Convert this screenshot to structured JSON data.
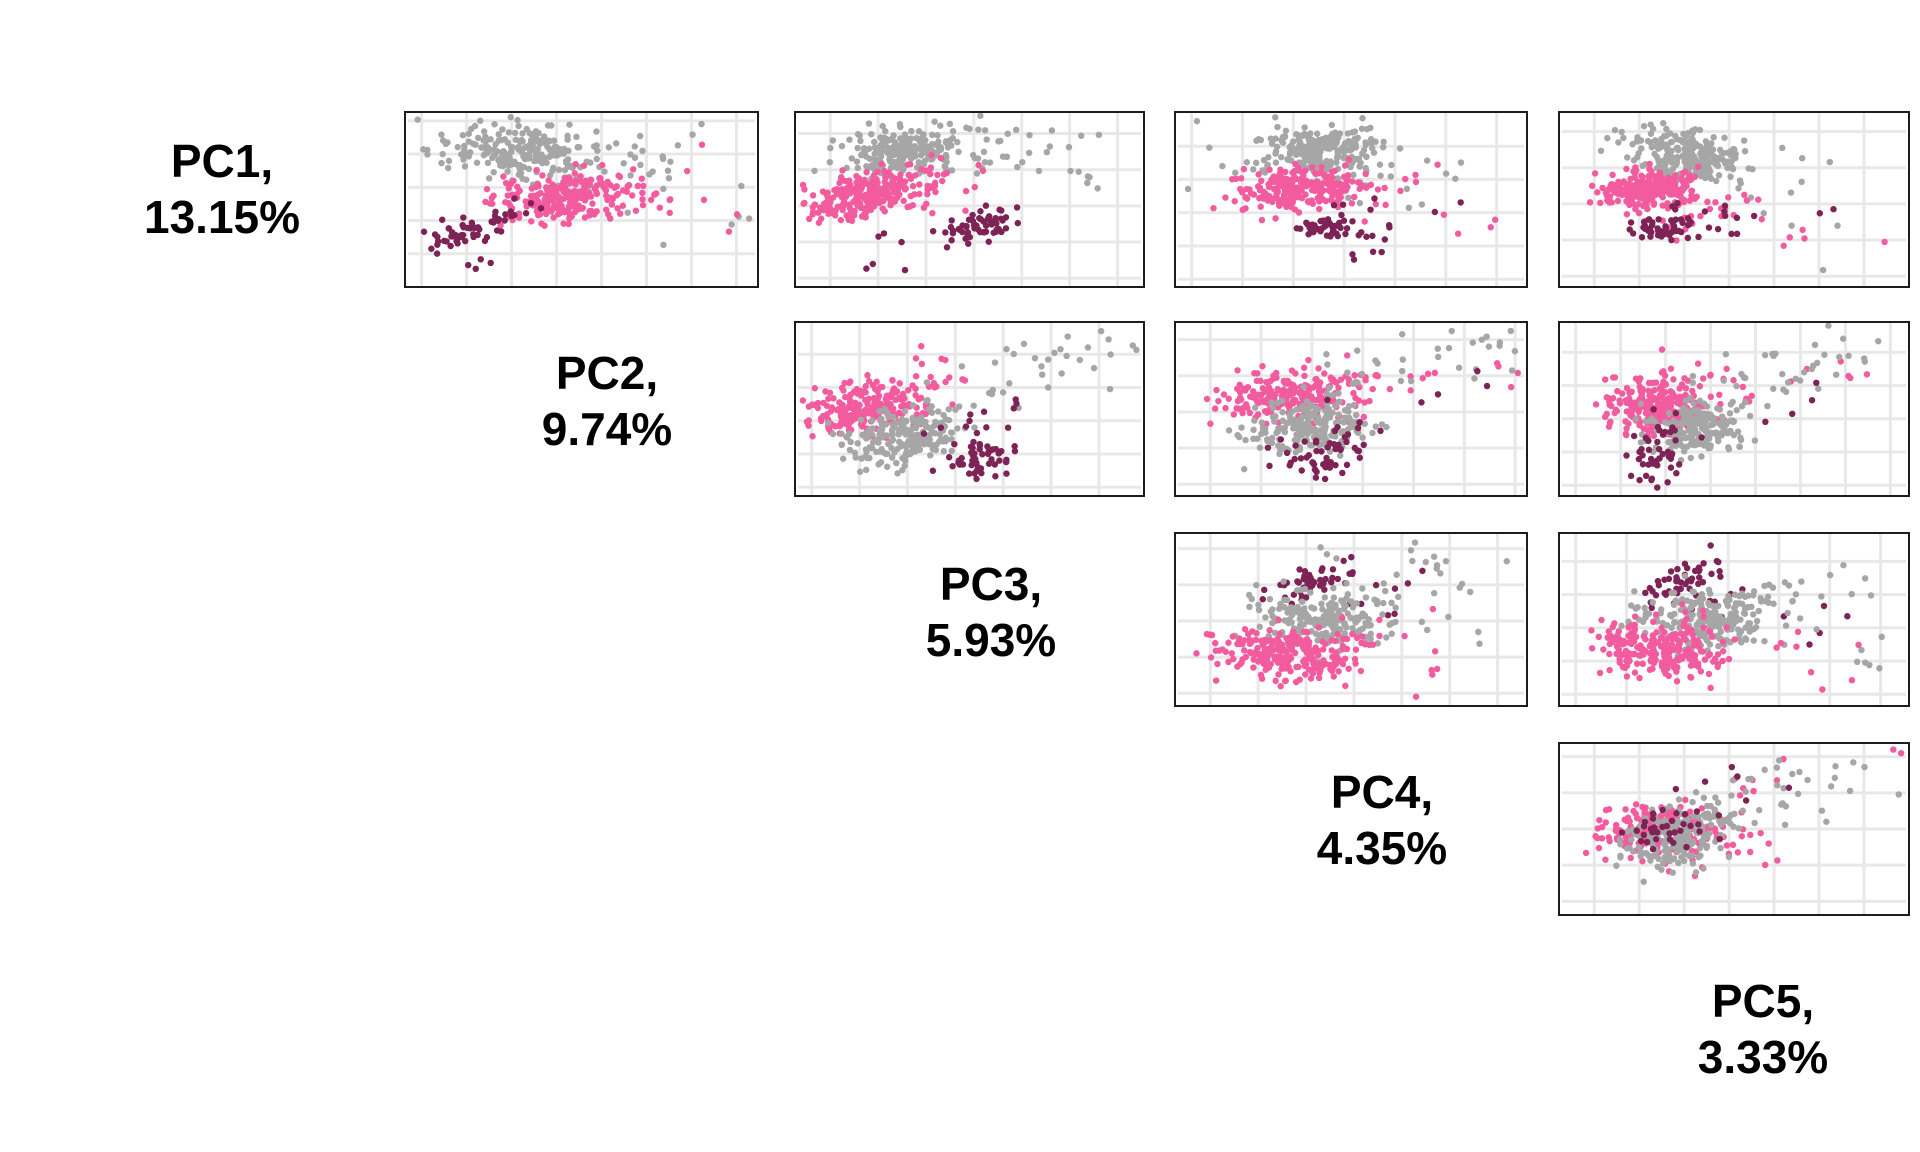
{
  "figure": {
    "kind": "PCA pairs scatter-plot matrix",
    "background": "#ffffff"
  },
  "colors": {
    "panel_background": "#ffffff",
    "panel_border": "#1c1c1c",
    "gridline": "#e8e8e8",
    "label_text": "#000000",
    "group_gray": "#a6a6a6",
    "group_pink": "#f35b9f",
    "group_dark": "#7e2355"
  },
  "diagonal_labels": [
    {
      "id": "PC1",
      "line1": "PC1,",
      "line2": "13.15%",
      "variance_percent": 13.15
    },
    {
      "id": "PC2",
      "line1": "PC2,",
      "line2": "9.74%",
      "variance_percent": 9.74
    },
    {
      "id": "PC3",
      "line1": "PC3,",
      "line2": "5.93%",
      "variance_percent": 5.93
    },
    {
      "id": "PC4",
      "line1": "PC4,",
      "line2": "4.35%",
      "variance_percent": 4.35
    },
    {
      "id": "PC5",
      "line1": "PC5,",
      "line2": "3.33%",
      "variance_percent": 3.33
    }
  ],
  "chart_data": {
    "type": "scatter",
    "title": "",
    "layout": "upper-triangle pairs matrix; diagonal cells show principal component name and percent variance explained; no axis tick labels shown; light gray gridlines on white panels",
    "legend": "none shown",
    "groups": [
      {
        "key": "gray",
        "name": "group-gray",
        "color": "#a6a6a6"
      },
      {
        "key": "pink",
        "name": "group-pink",
        "color": "#f35b9f"
      },
      {
        "key": "dark",
        "name": "group-dark-magenta",
        "color": "#7e2355"
      }
    ],
    "coords_note": "cluster centers (cx,cy) and spreads (sx,sy) are fractions of panel width/height measured from the panel top-left; rho is screen-space correlation; n is approximate point count",
    "point_radius_px": 3.3,
    "panels": [
      {
        "x_var": "PC2",
        "y_var": "PC1",
        "grid_row": 0,
        "grid_col": 0,
        "clusters": [
          {
            "group": "gray",
            "n": 215,
            "cx": 0.32,
            "cy": 0.22,
            "sx": 0.11,
            "sy": 0.075,
            "rho": 0.15
          },
          {
            "group": "gray",
            "n": 30,
            "cx": 0.62,
            "cy": 0.3,
            "sx": 0.17,
            "sy": 0.13,
            "rho": -0.2
          },
          {
            "group": "gray",
            "n": 6,
            "cx": 0.86,
            "cy": 0.42,
            "sx": 0.09,
            "sy": 0.16,
            "rho": 0
          },
          {
            "group": "pink",
            "n": 225,
            "cx": 0.46,
            "cy": 0.49,
            "sx": 0.1,
            "sy": 0.07,
            "rho": -0.25
          },
          {
            "group": "pink",
            "n": 20,
            "cx": 0.62,
            "cy": 0.47,
            "sx": 0.14,
            "sy": 0.13,
            "rho": 0
          },
          {
            "group": "dark",
            "n": 46,
            "cx": 0.155,
            "cy": 0.7,
            "sx": 0.065,
            "sy": 0.05,
            "rho": -0.5
          },
          {
            "group": "dark",
            "n": 14,
            "cx": 0.29,
            "cy": 0.57,
            "sx": 0.05,
            "sy": 0.045,
            "rho": -0.5
          },
          {
            "group": "dark",
            "n": 4,
            "cx": 0.24,
            "cy": 0.88,
            "sx": 0.11,
            "sy": 0.05,
            "rho": 0
          }
        ]
      },
      {
        "x_var": "PC3",
        "y_var": "PC1",
        "grid_row": 0,
        "grid_col": 1,
        "clusters": [
          {
            "group": "gray",
            "n": 210,
            "cx": 0.3,
            "cy": 0.22,
            "sx": 0.095,
            "sy": 0.07,
            "rho": -0.2
          },
          {
            "group": "gray",
            "n": 28,
            "cx": 0.6,
            "cy": 0.2,
            "sx": 0.12,
            "sy": 0.1,
            "rho": 0
          },
          {
            "group": "gray",
            "n": 8,
            "cx": 0.85,
            "cy": 0.3,
            "sx": 0.08,
            "sy": 0.1,
            "rho": 0
          },
          {
            "group": "pink",
            "n": 222,
            "cx": 0.21,
            "cy": 0.47,
            "sx": 0.085,
            "sy": 0.07,
            "rho": -0.35
          },
          {
            "group": "pink",
            "n": 20,
            "cx": 0.42,
            "cy": 0.38,
            "sx": 0.1,
            "sy": 0.1,
            "rho": 0
          },
          {
            "group": "dark",
            "n": 50,
            "cx": 0.53,
            "cy": 0.655,
            "sx": 0.055,
            "sy": 0.045,
            "rho": -0.2
          },
          {
            "group": "dark",
            "n": 10,
            "cx": 0.4,
            "cy": 0.68,
            "sx": 0.09,
            "sy": 0.07,
            "rho": 0
          },
          {
            "group": "dark",
            "n": 4,
            "cx": 0.25,
            "cy": 0.84,
            "sx": 0.1,
            "sy": 0.07,
            "rho": 0
          }
        ]
      },
      {
        "x_var": "PC4",
        "y_var": "PC1",
        "grid_row": 0,
        "grid_col": 2,
        "clusters": [
          {
            "group": "gray",
            "n": 205,
            "cx": 0.42,
            "cy": 0.21,
            "sx": 0.085,
            "sy": 0.07,
            "rho": 0
          },
          {
            "group": "gray",
            "n": 30,
            "cx": 0.38,
            "cy": 0.3,
            "sx": 0.2,
            "sy": 0.1,
            "rho": 0
          },
          {
            "group": "gray",
            "n": 8,
            "cx": 0.75,
            "cy": 0.45,
            "sx": 0.12,
            "sy": 0.18,
            "rho": 0
          },
          {
            "group": "pink",
            "n": 218,
            "cx": 0.34,
            "cy": 0.45,
            "sx": 0.095,
            "sy": 0.065,
            "rho": -0.2
          },
          {
            "group": "pink",
            "n": 18,
            "cx": 0.55,
            "cy": 0.42,
            "sx": 0.11,
            "sy": 0.1,
            "rho": 0
          },
          {
            "group": "pink",
            "n": 4,
            "cx": 0.85,
            "cy": 0.62,
            "sx": 0.09,
            "sy": 0.15,
            "rho": 0
          },
          {
            "group": "dark",
            "n": 46,
            "cx": 0.43,
            "cy": 0.66,
            "sx": 0.05,
            "sy": 0.04,
            "rho": -0.2
          },
          {
            "group": "dark",
            "n": 10,
            "cx": 0.55,
            "cy": 0.74,
            "sx": 0.07,
            "sy": 0.08,
            "rho": 0
          },
          {
            "group": "dark",
            "n": 6,
            "cx": 0.55,
            "cy": 0.55,
            "sx": 0.12,
            "sy": 0.1,
            "rho": 0
          }
        ]
      },
      {
        "x_var": "PC5",
        "y_var": "PC1",
        "grid_row": 0,
        "grid_col": 3,
        "clusters": [
          {
            "group": "gray",
            "n": 200,
            "cx": 0.39,
            "cy": 0.26,
            "sx": 0.07,
            "sy": 0.07,
            "rho": 0.1
          },
          {
            "group": "gray",
            "n": 30,
            "cx": 0.22,
            "cy": 0.15,
            "sx": 0.09,
            "sy": 0.06,
            "rho": 0
          },
          {
            "group": "gray",
            "n": 12,
            "cx": 0.62,
            "cy": 0.55,
            "sx": 0.15,
            "sy": 0.18,
            "rho": 0
          },
          {
            "group": "pink",
            "n": 215,
            "cx": 0.25,
            "cy": 0.44,
            "sx": 0.075,
            "sy": 0.06,
            "rho": -0.2
          },
          {
            "group": "pink",
            "n": 25,
            "cx": 0.42,
            "cy": 0.55,
            "sx": 0.09,
            "sy": 0.08,
            "rho": 0
          },
          {
            "group": "pink",
            "n": 5,
            "cx": 0.8,
            "cy": 0.72,
            "sx": 0.12,
            "sy": 0.12,
            "rho": 0
          },
          {
            "group": "dark",
            "n": 45,
            "cx": 0.29,
            "cy": 0.66,
            "sx": 0.05,
            "sy": 0.04,
            "rho": -0.2
          },
          {
            "group": "dark",
            "n": 10,
            "cx": 0.38,
            "cy": 0.57,
            "sx": 0.07,
            "sy": 0.07,
            "rho": 0
          },
          {
            "group": "dark",
            "n": 6,
            "cx": 0.6,
            "cy": 0.68,
            "sx": 0.15,
            "sy": 0.13,
            "rho": 0
          }
        ]
      },
      {
        "x_var": "PC3",
        "y_var": "PC2",
        "grid_row": 1,
        "grid_col": 1,
        "clusters": [
          {
            "group": "pink",
            "n": 222,
            "cx": 0.21,
            "cy": 0.5,
            "sx": 0.085,
            "sy": 0.08,
            "rho": -0.3
          },
          {
            "group": "pink",
            "n": 20,
            "cx": 0.38,
            "cy": 0.33,
            "sx": 0.09,
            "sy": 0.08,
            "rho": 0
          },
          {
            "group": "gray",
            "n": 200,
            "cx": 0.31,
            "cy": 0.66,
            "sx": 0.085,
            "sy": 0.085,
            "rho": -0.3
          },
          {
            "group": "gray",
            "n": 28,
            "cx": 0.62,
            "cy": 0.3,
            "sx": 0.14,
            "sy": 0.13,
            "rho": -0.6
          },
          {
            "group": "gray",
            "n": 8,
            "cx": 0.88,
            "cy": 0.1,
            "sx": 0.07,
            "sy": 0.05,
            "rho": 0
          },
          {
            "group": "dark",
            "n": 50,
            "cx": 0.53,
            "cy": 0.77,
            "sx": 0.055,
            "sy": 0.065,
            "rho": -0.2
          },
          {
            "group": "dark",
            "n": 8,
            "cx": 0.45,
            "cy": 0.57,
            "sx": 0.07,
            "sy": 0.08,
            "rho": 0
          },
          {
            "group": "dark",
            "n": 4,
            "cx": 0.68,
            "cy": 0.52,
            "sx": 0.07,
            "sy": 0.12,
            "rho": 0
          }
        ]
      },
      {
        "x_var": "PC4",
        "y_var": "PC2",
        "grid_row": 1,
        "grid_col": 2,
        "clusters": [
          {
            "group": "pink",
            "n": 218,
            "cx": 0.33,
            "cy": 0.42,
            "sx": 0.1,
            "sy": 0.08,
            "rho": -0.1
          },
          {
            "group": "pink",
            "n": 18,
            "cx": 0.55,
            "cy": 0.33,
            "sx": 0.12,
            "sy": 0.1,
            "rho": 0
          },
          {
            "group": "pink",
            "n": 4,
            "cx": 0.92,
            "cy": 0.28,
            "sx": 0.05,
            "sy": 0.06,
            "rho": 0
          },
          {
            "group": "gray",
            "n": 198,
            "cx": 0.38,
            "cy": 0.6,
            "sx": 0.09,
            "sy": 0.085,
            "rho": -0.2
          },
          {
            "group": "gray",
            "n": 26,
            "cx": 0.62,
            "cy": 0.25,
            "sx": 0.15,
            "sy": 0.12,
            "rho": -0.4
          },
          {
            "group": "gray",
            "n": 8,
            "cx": 0.86,
            "cy": 0.12,
            "sx": 0.08,
            "sy": 0.06,
            "rho": 0
          },
          {
            "group": "dark",
            "n": 48,
            "cx": 0.41,
            "cy": 0.79,
            "sx": 0.06,
            "sy": 0.065,
            "rho": -0.2
          },
          {
            "group": "dark",
            "n": 8,
            "cx": 0.5,
            "cy": 0.62,
            "sx": 0.07,
            "sy": 0.07,
            "rho": 0
          },
          {
            "group": "dark",
            "n": 4,
            "cx": 0.76,
            "cy": 0.4,
            "sx": 0.06,
            "sy": 0.09,
            "rho": 0
          }
        ]
      },
      {
        "x_var": "PC5",
        "y_var": "PC2",
        "grid_row": 1,
        "grid_col": 3,
        "clusters": [
          {
            "group": "pink",
            "n": 215,
            "cx": 0.27,
            "cy": 0.49,
            "sx": 0.075,
            "sy": 0.085,
            "rho": -0.1
          },
          {
            "group": "pink",
            "n": 20,
            "cx": 0.42,
            "cy": 0.4,
            "sx": 0.1,
            "sy": 0.1,
            "rho": 0
          },
          {
            "group": "pink",
            "n": 6,
            "cx": 0.72,
            "cy": 0.3,
            "sx": 0.14,
            "sy": 0.07,
            "rho": 0
          },
          {
            "group": "gray",
            "n": 190,
            "cx": 0.4,
            "cy": 0.61,
            "sx": 0.07,
            "sy": 0.08,
            "rho": -0.2
          },
          {
            "group": "gray",
            "n": 28,
            "cx": 0.62,
            "cy": 0.3,
            "sx": 0.13,
            "sy": 0.11,
            "rho": -0.3
          },
          {
            "group": "gray",
            "n": 8,
            "cx": 0.85,
            "cy": 0.18,
            "sx": 0.07,
            "sy": 0.07,
            "rho": 0
          },
          {
            "group": "dark",
            "n": 44,
            "cx": 0.27,
            "cy": 0.79,
            "sx": 0.045,
            "sy": 0.08,
            "rho": 0
          },
          {
            "group": "dark",
            "n": 8,
            "cx": 0.35,
            "cy": 0.62,
            "sx": 0.05,
            "sy": 0.06,
            "rho": 0
          },
          {
            "group": "dark",
            "n": 4,
            "cx": 0.62,
            "cy": 0.48,
            "sx": 0.09,
            "sy": 0.12,
            "rho": 0
          }
        ]
      },
      {
        "x_var": "PC4",
        "y_var": "PC3",
        "grid_row": 2,
        "grid_col": 2,
        "clusters": [
          {
            "group": "dark",
            "n": 48,
            "cx": 0.38,
            "cy": 0.28,
            "sx": 0.065,
            "sy": 0.06,
            "rho": -0.45
          },
          {
            "group": "dark",
            "n": 8,
            "cx": 0.5,
            "cy": 0.4,
            "sx": 0.07,
            "sy": 0.07,
            "rho": 0
          },
          {
            "group": "dark",
            "n": 5,
            "cx": 0.63,
            "cy": 0.27,
            "sx": 0.11,
            "sy": 0.11,
            "rho": 0
          },
          {
            "group": "gray",
            "n": 205,
            "cx": 0.42,
            "cy": 0.5,
            "sx": 0.1,
            "sy": 0.095,
            "rho": 0
          },
          {
            "group": "gray",
            "n": 24,
            "cx": 0.6,
            "cy": 0.22,
            "sx": 0.13,
            "sy": 0.11,
            "rho": 0
          },
          {
            "group": "gray",
            "n": 8,
            "cx": 0.8,
            "cy": 0.52,
            "sx": 0.1,
            "sy": 0.12,
            "rho": 0
          },
          {
            "group": "pink",
            "n": 220,
            "cx": 0.3,
            "cy": 0.7,
            "sx": 0.1,
            "sy": 0.075,
            "rho": 0.15
          },
          {
            "group": "pink",
            "n": 20,
            "cx": 0.48,
            "cy": 0.62,
            "sx": 0.12,
            "sy": 0.09,
            "rho": 0
          },
          {
            "group": "pink",
            "n": 4,
            "cx": 0.72,
            "cy": 0.85,
            "sx": 0.09,
            "sy": 0.06,
            "rho": 0
          }
        ]
      },
      {
        "x_var": "PC5",
        "y_var": "PC3",
        "grid_row": 2,
        "grid_col": 3,
        "clusters": [
          {
            "group": "dark",
            "n": 46,
            "cx": 0.34,
            "cy": 0.27,
            "sx": 0.055,
            "sy": 0.075,
            "rho": -0.6
          },
          {
            "group": "dark",
            "n": 8,
            "cx": 0.45,
            "cy": 0.42,
            "sx": 0.06,
            "sy": 0.06,
            "rho": 0
          },
          {
            "group": "dark",
            "n": 5,
            "cx": 0.68,
            "cy": 0.5,
            "sx": 0.1,
            "sy": 0.09,
            "rho": 0
          },
          {
            "group": "gray",
            "n": 200,
            "cx": 0.42,
            "cy": 0.5,
            "sx": 0.095,
            "sy": 0.09,
            "rho": 0
          },
          {
            "group": "gray",
            "n": 24,
            "cx": 0.62,
            "cy": 0.32,
            "sx": 0.13,
            "sy": 0.11,
            "rho": 0
          },
          {
            "group": "gray",
            "n": 10,
            "cx": 0.85,
            "cy": 0.62,
            "sx": 0.1,
            "sy": 0.16,
            "rho": 0
          },
          {
            "group": "pink",
            "n": 220,
            "cx": 0.28,
            "cy": 0.68,
            "sx": 0.09,
            "sy": 0.08,
            "rho": 0.1
          },
          {
            "group": "pink",
            "n": 20,
            "cx": 0.45,
            "cy": 0.6,
            "sx": 0.12,
            "sy": 0.09,
            "rho": 0
          },
          {
            "group": "pink",
            "n": 5,
            "cx": 0.8,
            "cy": 0.78,
            "sx": 0.12,
            "sy": 0.1,
            "rho": 0
          }
        ]
      },
      {
        "x_var": "PC5",
        "y_var": "PC4",
        "grid_row": 3,
        "grid_col": 3,
        "clusters": [
          {
            "group": "pink",
            "n": 200,
            "cx": 0.27,
            "cy": 0.5,
            "sx": 0.08,
            "sy": 0.07,
            "rho": -0.2
          },
          {
            "group": "pink",
            "n": 25,
            "cx": 0.42,
            "cy": 0.62,
            "sx": 0.1,
            "sy": 0.09,
            "rho": -0.3
          },
          {
            "group": "pink",
            "n": 7,
            "cx": 0.55,
            "cy": 0.25,
            "sx": 0.12,
            "sy": 0.1,
            "rho": 0
          },
          {
            "group": "pink",
            "n": 2,
            "cx": 0.96,
            "cy": 0.07,
            "sx": 0.02,
            "sy": 0.03,
            "rho": 0
          },
          {
            "group": "gray",
            "n": 195,
            "cx": 0.35,
            "cy": 0.55,
            "sx": 0.085,
            "sy": 0.09,
            "rho": -0.35
          },
          {
            "group": "gray",
            "n": 26,
            "cx": 0.6,
            "cy": 0.28,
            "sx": 0.14,
            "sy": 0.11,
            "rho": 0
          },
          {
            "group": "gray",
            "n": 9,
            "cx": 0.82,
            "cy": 0.18,
            "sx": 0.1,
            "sy": 0.08,
            "rho": 0
          },
          {
            "group": "dark",
            "n": 34,
            "cx": 0.31,
            "cy": 0.5,
            "sx": 0.06,
            "sy": 0.06,
            "rho": -0.2
          },
          {
            "group": "dark",
            "n": 7,
            "cx": 0.5,
            "cy": 0.32,
            "sx": 0.1,
            "sy": 0.09,
            "rho": 0
          }
        ]
      }
    ]
  }
}
